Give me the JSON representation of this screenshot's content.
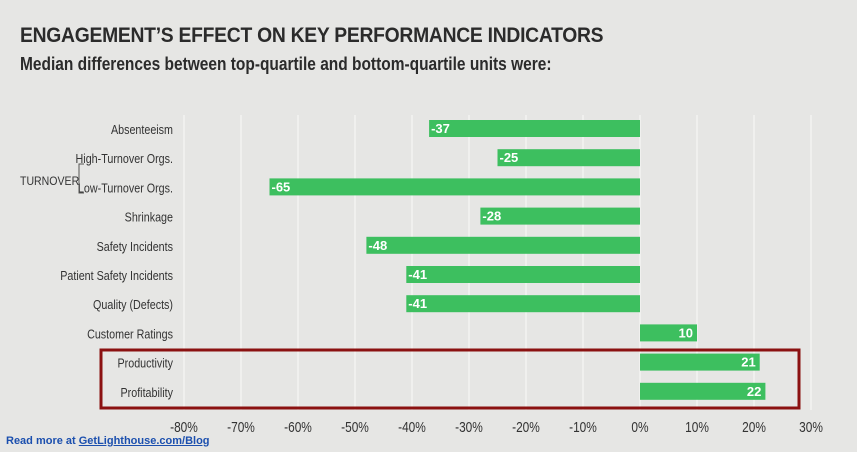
{
  "title": "ENGAGEMENT’S EFFECT ON KEY PERFORMANCE INDICATORS",
  "subtitle": "Median differences between top-quartile and bottom-quartile units were:",
  "group_label": "TURNOVER",
  "footer": {
    "prefix": "Read more at ",
    "link": "GetLighthouse.com/Blog"
  },
  "colors": {
    "bar": "#3dbf5f",
    "highlight": "#8b1111",
    "background": "#e6e6e4"
  },
  "chart_data": {
    "type": "bar",
    "orientation": "horizontal",
    "categories": [
      "Absenteeism",
      "High-Turnover Orgs.",
      "Low-Turnover Orgs.",
      "Shrinkage",
      "Safety Incidents",
      "Patient Safety Incidents",
      "Quality (Defects)",
      "Customer Ratings",
      "Productivity",
      "Profitability"
    ],
    "values": [
      -37,
      -25,
      -65,
      -28,
      -48,
      -41,
      -41,
      10,
      21,
      22
    ],
    "data_labels": [
      "-37",
      "-25",
      "-65",
      "-28",
      "-48",
      "-41",
      "-41",
      "10",
      "21",
      "22"
    ],
    "x_ticks": [
      -80,
      -70,
      -60,
      -50,
      -40,
      -30,
      -20,
      -10,
      0,
      10,
      20,
      30
    ],
    "x_tick_labels": [
      "-80%",
      "-70%",
      "-60%",
      "-50%",
      "-40%",
      "-30%",
      "-20%",
      "-10%",
      "0%",
      "10%",
      "20%",
      "30%"
    ],
    "xlim": [
      -80,
      30
    ],
    "grid": "vertical",
    "highlighted_categories": [
      "Productivity",
      "Profitability"
    ]
  }
}
